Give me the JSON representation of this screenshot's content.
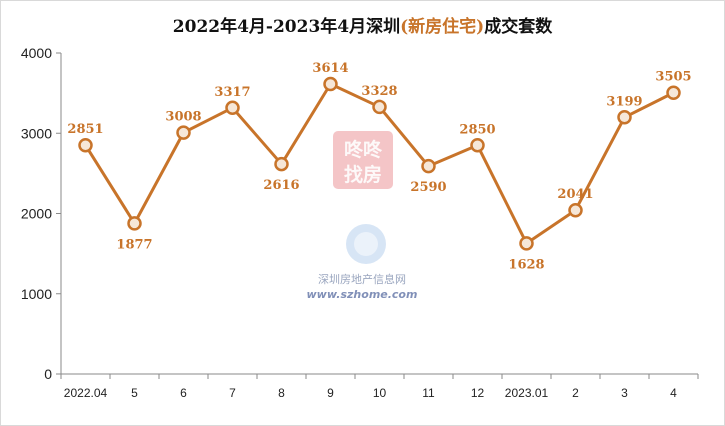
{
  "title": {
    "prefix": "2022年4月-2023年4月深圳",
    "highlight": "(新房住宅)",
    "suffix": "成交套数"
  },
  "watermark": {
    "badge": [
      "咚咚",
      "找房"
    ],
    "site_name": "深圳房地产信息网",
    "url": "www.szhome.com"
  },
  "colors": {
    "line": "#c8742a",
    "marker_fill": "#f6e7d8",
    "axis": "#8a8a8a",
    "watermark_badge": "#e05a5f"
  },
  "chart_data": {
    "type": "line",
    "categories": [
      "2022.04",
      "5",
      "6",
      "7",
      "8",
      "9",
      "10",
      "11",
      "12",
      "2023.01",
      "2",
      "3",
      "4"
    ],
    "values": [
      2851,
      1877,
      3008,
      3317,
      2616,
      3614,
      3328,
      2590,
      2850,
      1628,
      2041,
      3199,
      3505
    ],
    "data_labels": [
      "2851",
      "1877",
      "3008",
      "3317",
      "2616",
      "3614",
      "3328",
      "2590",
      "2850",
      "1628",
      "2041",
      "3199",
      "3505"
    ],
    "y_ticks": [
      "0",
      "1000",
      "2000",
      "3000",
      "4000"
    ],
    "title": "2022年4月-2023年4月深圳(新房住宅)成交套数",
    "xlabel": "",
    "ylabel": "",
    "ylim": [
      0,
      4000
    ],
    "grid": false,
    "legend": "none",
    "label_side": [
      "above",
      "below",
      "above",
      "above",
      "below",
      "above",
      "above",
      "below",
      "above",
      "below",
      "above",
      "above",
      "above"
    ]
  }
}
